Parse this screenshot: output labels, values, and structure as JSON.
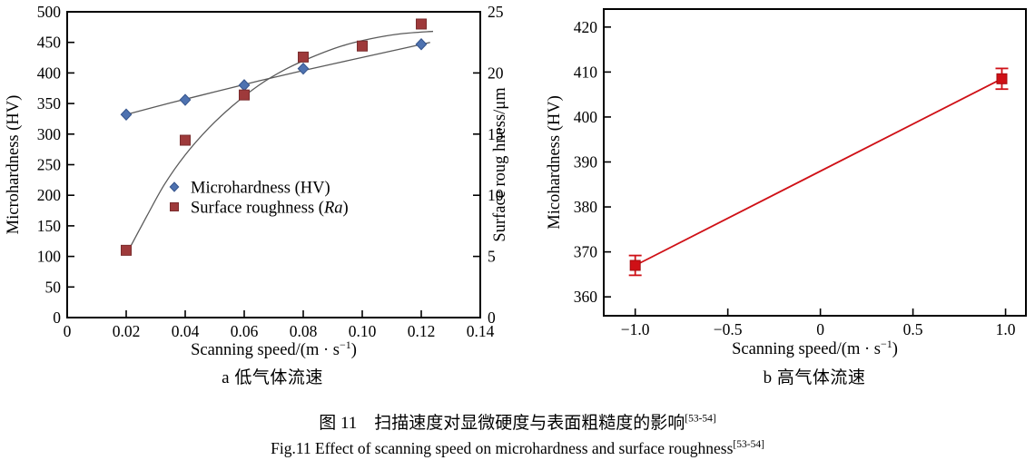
{
  "figure": {
    "caption_cn": "图 11　扫描速度对显微硬度与表面粗糙度的影响",
    "caption_cn_sup": "[53-54]",
    "caption_en": "Fig.11 Effect of scanning speed on microhardness and surface roughness",
    "caption_en_sup": "[53-54]"
  },
  "colors": {
    "microhardness_blue": "#4e72b0",
    "microhardness_blue_edge": "#35548c",
    "roughness_red": "#9e3a3b",
    "roughness_red_edge": "#7a2c2d",
    "trend_gray": "#5a5a5a",
    "bright_red": "#cf1016",
    "axis_black": "#000000"
  },
  "chart_data": [
    {
      "id": "a",
      "type": "scatter",
      "subtitle": "a 低气体流速",
      "xlabel": {
        "pre": "Scanning speed/(m · s",
        "sup": "−1",
        "post": ")"
      },
      "ylabel_left": "Microhardness (HV)",
      "ylabel_right": "Surface roug hness/μm",
      "xlim": [
        0,
        0.14
      ],
      "ylim_left": [
        0,
        500
      ],
      "ylim_right": [
        0,
        25
      ],
      "grid": false,
      "legend_position": "center-left-inside",
      "x_ticks": [
        {
          "v": 0,
          "label": "0"
        },
        {
          "v": 0.02,
          "label": "0.02"
        },
        {
          "v": 0.04,
          "label": "0.04"
        },
        {
          "v": 0.06,
          "label": "0.06"
        },
        {
          "v": 0.08,
          "label": "0.08"
        },
        {
          "v": 0.1,
          "label": "0.10"
        },
        {
          "v": 0.12,
          "label": "0.12"
        },
        {
          "v": 0.14,
          "label": "0.14"
        }
      ],
      "y_ticks_left": [
        {
          "v": 0,
          "label": "0"
        },
        {
          "v": 50,
          "label": "50"
        },
        {
          "v": 100,
          "label": "100"
        },
        {
          "v": 150,
          "label": "150"
        },
        {
          "v": 200,
          "label": "200"
        },
        {
          "v": 250,
          "label": "250"
        },
        {
          "v": 300,
          "label": "300"
        },
        {
          "v": 350,
          "label": "350"
        },
        {
          "v": 400,
          "label": "400"
        },
        {
          "v": 450,
          "label": "450"
        },
        {
          "v": 500,
          "label": "500"
        }
      ],
      "y_ticks_right": [
        {
          "v": 0,
          "label": "0"
        },
        {
          "v": 5,
          "label": "5"
        },
        {
          "v": 10,
          "label": "10"
        },
        {
          "v": 15,
          "label": "15"
        },
        {
          "v": 20,
          "label": "20"
        },
        {
          "v": 25,
          "label": "25"
        }
      ],
      "series": [
        {
          "name": "Microhardness (HV)",
          "axis": "left",
          "marker": "diamond",
          "color": "#4e72b0",
          "edge": "#35548c",
          "points": [
            [
              0.02,
              332
            ],
            [
              0.04,
              356
            ],
            [
              0.06,
              380
            ],
            [
              0.08,
              407
            ],
            [
              0.12,
              447
            ]
          ],
          "trend": [
            [
              0.02,
              332
            ],
            [
              0.035,
              351
            ],
            [
              0.05,
              369
            ],
            [
              0.065,
              387
            ],
            [
              0.08,
              404
            ],
            [
              0.095,
              420
            ],
            [
              0.11,
              436
            ],
            [
              0.123,
              450
            ]
          ]
        },
        {
          "name": "Surface roughness (Ra)",
          "axis": "right",
          "marker": "square",
          "color": "#9e3a3b",
          "edge": "#7a2c2d",
          "points": [
            [
              0.02,
              5.5
            ],
            [
              0.04,
              14.5
            ],
            [
              0.06,
              18.2
            ],
            [
              0.08,
              21.3
            ],
            [
              0.1,
              22.2
            ],
            [
              0.12,
              24.0
            ]
          ],
          "trend": [
            [
              0.021,
              5.6
            ],
            [
              0.027,
              8.3
            ],
            [
              0.033,
              10.9
            ],
            [
              0.04,
              13.3
            ],
            [
              0.048,
              15.5
            ],
            [
              0.056,
              17.3
            ],
            [
              0.065,
              19.0
            ],
            [
              0.074,
              20.3
            ],
            [
              0.083,
              21.3
            ],
            [
              0.093,
              22.2
            ],
            [
              0.103,
              22.8
            ],
            [
              0.113,
              23.2
            ],
            [
              0.124,
              23.4
            ]
          ]
        }
      ],
      "trend_color": "#5a5a5a",
      "legend": [
        {
          "marker": "diamond",
          "color": "#4e72b0",
          "edge": "#35548c",
          "text": "Microhardness (HV)",
          "italic": "",
          "post": ""
        },
        {
          "marker": "square",
          "color": "#9e3a3b",
          "edge": "#7a2c2d",
          "text": "Surface roughness (",
          "italic": "Ra",
          "post": ")"
        }
      ]
    },
    {
      "id": "b",
      "type": "line",
      "subtitle": "b 高气体流速",
      "xlabel": {
        "pre": "Scanning speed/(m · s",
        "sup": "−1",
        "post": ")"
      },
      "ylabel_left": "Micohardness (HV)",
      "xlim": [
        -1.17,
        1.11
      ],
      "ylim_left": [
        355.8,
        424
      ],
      "grid": false,
      "x_ticks": [
        {
          "v": -1.0,
          "label": "−1.0"
        },
        {
          "v": -0.5,
          "label": "−0.5"
        },
        {
          "v": 0,
          "label": "0"
        },
        {
          "v": 0.5,
          "label": "0.5"
        },
        {
          "v": 1.0,
          "label": "1.0"
        }
      ],
      "y_ticks_left": [
        {
          "v": 360,
          "label": "360"
        },
        {
          "v": 370,
          "label": "370"
        },
        {
          "v": 380,
          "label": "380"
        },
        {
          "v": 390,
          "label": "390"
        },
        {
          "v": 400,
          "label": "400"
        },
        {
          "v": 410,
          "label": "410"
        },
        {
          "v": 420,
          "label": "420"
        }
      ],
      "series": [
        {
          "name": "Microhardness (HV)",
          "axis": "left",
          "marker": "square",
          "line": true,
          "color": "#cf1016",
          "edge": "#a50c10",
          "points": [
            [
              -1.0,
              367
            ],
            [
              0.98,
              408.5
            ]
          ],
          "errors": [
            2.2,
            2.3
          ]
        }
      ]
    }
  ]
}
